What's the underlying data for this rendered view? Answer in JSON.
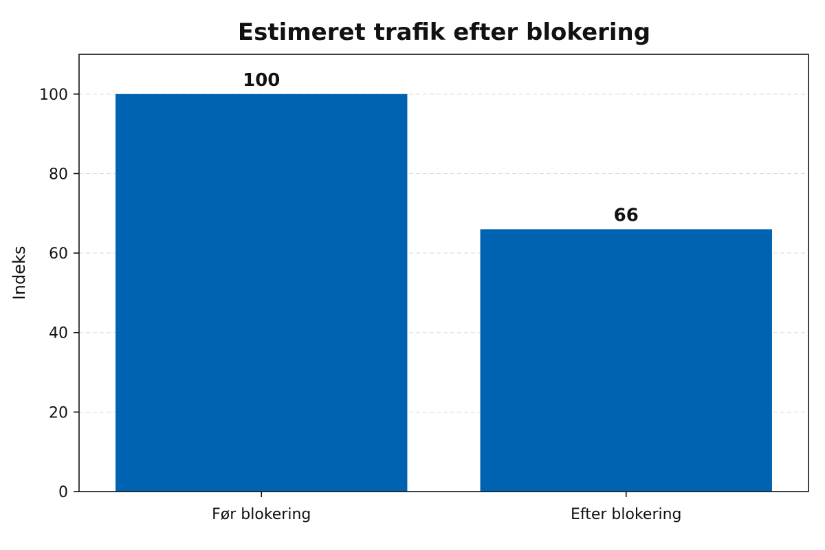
{
  "chart_data": {
    "type": "bar",
    "title": "Estimeret trafik efter blokering",
    "xlabel": "",
    "ylabel": "Indeks",
    "categories": [
      "Før blokering",
      "Efter blokering"
    ],
    "values": [
      100,
      66
    ],
    "data_labels": [
      "100",
      "66"
    ],
    "ylim": [
      0,
      110
    ],
    "yticks": [
      0,
      20,
      40,
      60,
      80,
      100
    ],
    "grid": true,
    "bar_color": "#0063b1"
  }
}
